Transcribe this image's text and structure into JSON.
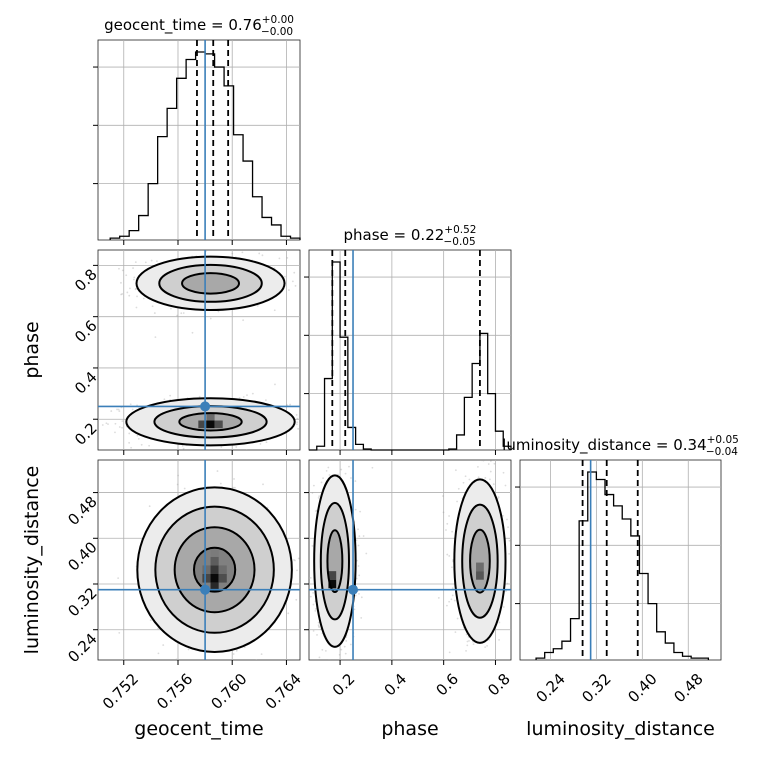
{
  "chart_data": {
    "type": "corner",
    "parameters": [
      "geocent_time",
      "phase",
      "luminosity_distance"
    ],
    "truths": {
      "geocent_time": 0.758,
      "phase": 0.25,
      "luminosity_distance": 0.31
    },
    "colors": {
      "truth": "#3b7fb9",
      "contour": "#000000",
      "samples": "#9a9a9a"
    },
    "grid": true,
    "titles": [
      {
        "param": "geocent_time",
        "prefix": "geocent_time = ",
        "median": "0.76",
        "plus": "+0.00",
        "minus": "−0.00"
      },
      {
        "param": "phase",
        "prefix": "phase = ",
        "median": "0.22",
        "plus": "+0.52",
        "minus": "−0.05"
      },
      {
        "param": "luminosity_distance",
        "prefix": "luminosity_distance = ",
        "median": "0.34",
        "plus": "+0.05",
        "minus": "−0.04"
      }
    ],
    "axes": {
      "geocent_time": {
        "range": [
          0.7501,
          0.765
        ],
        "ticks": [
          0.752,
          0.756,
          0.76,
          0.764
        ],
        "tick_labels": [
          "0.752",
          "0.756",
          "0.760",
          "0.764"
        ]
      },
      "phase": {
        "range": [
          0.08,
          0.86
        ],
        "ticks": [
          0.2,
          0.4,
          0.6,
          0.8
        ],
        "tick_labels": [
          "0.2",
          "0.4",
          "0.6",
          "0.8"
        ]
      },
      "luminosity_distance": {
        "range": [
          0.187,
          0.537
        ],
        "ticks": [
          0.24,
          0.32,
          0.4,
          0.48
        ],
        "tick_labels": [
          "0.24",
          "0.32",
          "0.40",
          "0.48"
        ]
      }
    },
    "axis_labels": {
      "bottom": [
        "geocent_time",
        "phase",
        "luminosity_distance"
      ],
      "left": [
        "phase",
        "luminosity_distance"
      ]
    },
    "histograms": {
      "geocent_time": {
        "edges": [
          0.751,
          0.7517,
          0.7524,
          0.7531,
          0.7538,
          0.7545,
          0.7552,
          0.7559,
          0.7566,
          0.7573,
          0.758,
          0.7587,
          0.7594,
          0.7601,
          0.7608,
          0.7615,
          0.7622,
          0.7629,
          0.7636,
          0.7643,
          0.765
        ],
        "counts": [
          1,
          2,
          5,
          13,
          30,
          55,
          70,
          86,
          96,
          100,
          99,
          92,
          82,
          56,
          42,
          23,
          12,
          8,
          2,
          1
        ],
        "quantiles": [
          0.7574,
          0.7586,
          0.7597
        ]
      },
      "phase": {
        "edges": [
          0.08,
          0.11,
          0.14,
          0.17,
          0.2,
          0.23,
          0.26,
          0.29,
          0.32,
          0.35,
          0.38,
          0.41,
          0.44,
          0.47,
          0.5,
          0.53,
          0.56,
          0.59,
          0.62,
          0.65,
          0.68,
          0.71,
          0.74,
          0.77,
          0.8,
          0.83,
          0.86
        ],
        "counts": [
          0,
          2,
          38,
          100,
          60,
          12,
          3,
          0.5,
          0,
          0,
          0,
          0,
          0,
          0,
          0,
          0,
          0,
          0,
          0.5,
          8,
          28,
          46,
          62,
          30,
          10,
          2
        ],
        "quantiles": [
          0.17,
          0.22,
          0.74
        ]
      },
      "luminosity_distance": {
        "edges": [
          0.215,
          0.23,
          0.245,
          0.26,
          0.275,
          0.29,
          0.305,
          0.32,
          0.335,
          0.35,
          0.365,
          0.38,
          0.395,
          0.41,
          0.425,
          0.44,
          0.455,
          0.47,
          0.485,
          0.5,
          0.515
        ],
        "counts": [
          1,
          4,
          6,
          10,
          22,
          74,
          100,
          96,
          88,
          82,
          75,
          66,
          46,
          30,
          15,
          9,
          4,
          2,
          1,
          1
        ],
        "quantiles": [
          0.296,
          0.338,
          0.392
        ]
      }
    },
    "contours_2d": [
      {
        "x": "geocent_time",
        "y": "phase",
        "modes": [
          {
            "cx": 0.7584,
            "cy": 0.73,
            "sx": 0.0021,
            "sy": 0.04,
            "levels": [
              1.0,
              1.8,
              2.6
            ]
          },
          {
            "cx": 0.7584,
            "cy": 0.19,
            "sx": 0.0023,
            "sy": 0.034,
            "levels": [
              1.0,
              1.8,
              2.7
            ]
          }
        ],
        "dense_cells": [
          {
            "x": 0.7584,
            "y": 0.18,
            "weight": 1.0
          },
          {
            "x": 0.7578,
            "y": 0.18,
            "weight": 0.6
          },
          {
            "x": 0.759,
            "y": 0.18,
            "weight": 0.55
          },
          {
            "x": 0.7584,
            "y": 0.21,
            "weight": 0.35
          }
        ]
      },
      {
        "x": "geocent_time",
        "y": "luminosity_distance",
        "modes": [
          {
            "cx": 0.7587,
            "cy": 0.345,
            "sx": 0.0019,
            "sy": 0.048,
            "levels": [
              0.8,
              1.55,
              2.3,
              3.0
            ]
          }
        ],
        "dense_cells": [
          {
            "x": 0.7587,
            "y": 0.33,
            "weight": 1.0
          },
          {
            "x": 0.7587,
            "y": 0.315,
            "weight": 0.8
          },
          {
            "x": 0.7581,
            "y": 0.33,
            "weight": 0.6
          },
          {
            "x": 0.7593,
            "y": 0.33,
            "weight": 0.55
          },
          {
            "x": 0.7587,
            "y": 0.345,
            "weight": 0.7
          },
          {
            "x": 0.7587,
            "y": 0.36,
            "weight": 0.45
          },
          {
            "x": 0.7581,
            "y": 0.345,
            "weight": 0.35
          },
          {
            "x": 0.7593,
            "y": 0.345,
            "weight": 0.35
          },
          {
            "x": 0.7587,
            "y": 0.375,
            "weight": 0.25
          }
        ]
      },
      {
        "x": "phase",
        "y": "luminosity_distance",
        "modes": [
          {
            "cx": 0.18,
            "cy": 0.36,
            "sx": 0.032,
            "sy": 0.06,
            "levels": [
              0.9,
              1.7,
              2.5
            ]
          },
          {
            "cx": 0.74,
            "cy": 0.36,
            "sx": 0.038,
            "sy": 0.055,
            "levels": [
              1.0,
              1.8,
              2.6
            ]
          }
        ],
        "dense_cells": [
          {
            "x": 0.17,
            "y": 0.32,
            "weight": 1.0
          },
          {
            "x": 0.17,
            "y": 0.335,
            "weight": 0.6
          },
          {
            "x": 0.74,
            "y": 0.335,
            "weight": 0.5
          },
          {
            "x": 0.74,
            "y": 0.35,
            "weight": 0.35
          }
        ]
      }
    ]
  }
}
